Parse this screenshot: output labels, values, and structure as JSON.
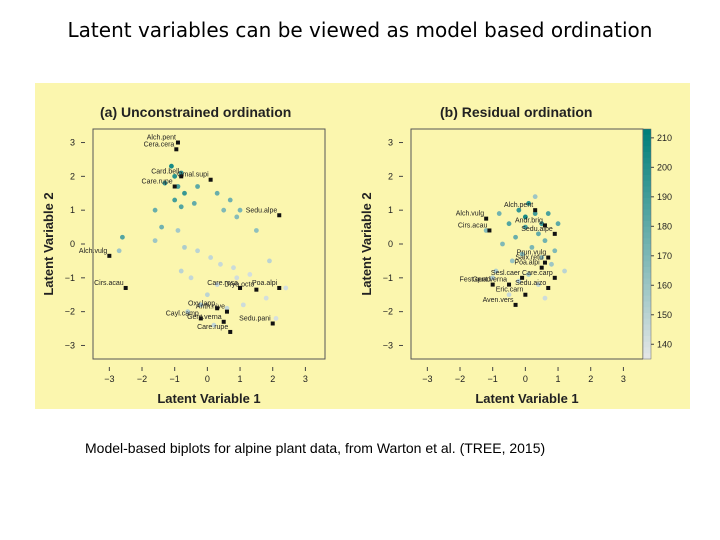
{
  "slide": {
    "title": "Latent variables can be viewed as model based ordination",
    "caption": "Model-based biplots for alpine plant data, from Warton et al. (TREE, 2015)"
  },
  "colors": {
    "panel_bg": "#fbf6ae",
    "site_low": "#e8e8e8",
    "site_high": "#007f7a",
    "species": "#111111"
  },
  "chart_data": [
    {
      "type": "scatter",
      "title": "(a) Unconstrained ordination",
      "xlabel": "Latent Variable 1",
      "ylabel": "Latent Variable 2",
      "xlim": [
        -3.5,
        3.6
      ],
      "ylim": [
        -3.4,
        3.4
      ],
      "xticks": [
        "−3",
        "−2",
        "−1",
        "0",
        "1",
        "2",
        "3"
      ],
      "yticks": [
        "3",
        "2",
        "1",
        "0",
        "−1",
        "−2",
        "−3"
      ],
      "sites": [
        {
          "x": -1.1,
          "y": 2.3,
          "v": 205
        },
        {
          "x": -1.0,
          "y": 2.0,
          "v": 200
        },
        {
          "x": -0.8,
          "y": 2.1,
          "v": 198
        },
        {
          "x": -1.3,
          "y": 1.8,
          "v": 195
        },
        {
          "x": -0.9,
          "y": 1.7,
          "v": 190
        },
        {
          "x": -0.7,
          "y": 1.5,
          "v": 195
        },
        {
          "x": -1.0,
          "y": 1.3,
          "v": 190
        },
        {
          "x": -0.8,
          "y": 1.1,
          "v": 185
        },
        {
          "x": -0.3,
          "y": 1.7,
          "v": 182
        },
        {
          "x": 0.3,
          "y": 1.5,
          "v": 178
        },
        {
          "x": 0.7,
          "y": 1.3,
          "v": 175
        },
        {
          "x": 1.0,
          "y": 1.0,
          "v": 172
        },
        {
          "x": 0.5,
          "y": 1.0,
          "v": 170
        },
        {
          "x": 0.9,
          "y": 0.8,
          "v": 168
        },
        {
          "x": -0.4,
          "y": 1.2,
          "v": 180
        },
        {
          "x": -1.6,
          "y": 1.0,
          "v": 178
        },
        {
          "x": -1.4,
          "y": 0.5,
          "v": 175
        },
        {
          "x": -2.6,
          "y": 0.2,
          "v": 185
        },
        {
          "x": -2.7,
          "y": -0.2,
          "v": 160
        },
        {
          "x": -1.6,
          "y": 0.1,
          "v": 160
        },
        {
          "x": -0.9,
          "y": 0.4,
          "v": 158
        },
        {
          "x": -0.7,
          "y": -0.1,
          "v": 155
        },
        {
          "x": -0.3,
          "y": -0.2,
          "v": 150
        },
        {
          "x": 0.1,
          "y": -0.4,
          "v": 148
        },
        {
          "x": 0.4,
          "y": -0.6,
          "v": 146
        },
        {
          "x": 0.8,
          "y": -0.7,
          "v": 145
        },
        {
          "x": -0.8,
          "y": -0.8,
          "v": 150
        },
        {
          "x": -0.5,
          "y": -1.0,
          "v": 147
        },
        {
          "x": 0.3,
          "y": -1.2,
          "v": 146
        },
        {
          "x": 0.9,
          "y": -1.0,
          "v": 143
        },
        {
          "x": 1.3,
          "y": -0.9,
          "v": 142
        },
        {
          "x": 0.0,
          "y": -1.5,
          "v": 150
        },
        {
          "x": -0.2,
          "y": -1.8,
          "v": 155
        },
        {
          "x": 0.6,
          "y": -1.9,
          "v": 146
        },
        {
          "x": 1.1,
          "y": -1.8,
          "v": 144
        },
        {
          "x": 1.8,
          "y": -1.6,
          "v": 142
        },
        {
          "x": 2.1,
          "y": -2.2,
          "v": 141
        },
        {
          "x": -0.6,
          "y": -2.0,
          "v": 152
        },
        {
          "x": 0.2,
          "y": -2.4,
          "v": 148
        },
        {
          "x": 1.5,
          "y": 0.4,
          "v": 165
        },
        {
          "x": 1.9,
          "y": -0.5,
          "v": 150
        },
        {
          "x": 2.4,
          "y": -1.3,
          "v": 142
        }
      ],
      "species": [
        {
          "name": "Alch.pent",
          "x": -0.9,
          "y": 3.0
        },
        {
          "name": "Cera.cera",
          "x": -0.95,
          "y": 2.8
        },
        {
          "name": "Card.bell",
          "x": -0.8,
          "y": 2.0
        },
        {
          "name": "Omal.supi",
          "x": 0.1,
          "y": 1.9
        },
        {
          "name": "Care.rupe",
          "x": -1.0,
          "y": 1.7
        },
        {
          "name": "Sedu.alpe",
          "x": 2.2,
          "y": 0.85
        },
        {
          "name": "Alch.vulg",
          "x": -3.0,
          "y": -0.35
        },
        {
          "name": "Cirs.acau",
          "x": -2.5,
          "y": -1.3
        },
        {
          "name": "Care.rosa",
          "x": 1.0,
          "y": -1.3
        },
        {
          "name": "Dryo.octo",
          "x": 1.5,
          "y": -1.35
        },
        {
          "name": "Poa.alpi",
          "x": 2.2,
          "y": -1.3
        },
        {
          "name": "Oxy.lapp",
          "x": 0.3,
          "y": -1.9
        },
        {
          "name": "Anth.nive",
          "x": 0.6,
          "y": -2.0
        },
        {
          "name": "Cayl.camp",
          "x": -0.2,
          "y": -2.2
        },
        {
          "name": "Gent.verna",
          "x": 0.5,
          "y": -2.3
        },
        {
          "name": "Sedu.pani",
          "x": 2.0,
          "y": -2.35
        },
        {
          "name": "Care.rupe",
          "x": 0.7,
          "y": -2.6
        }
      ]
    },
    {
      "type": "scatter",
      "title": "(b) Residual ordination",
      "xlabel": "Latent Variable 1",
      "ylabel": "Latent Variable 2",
      "xlim": [
        -3.5,
        3.6
      ],
      "ylim": [
        -3.4,
        3.4
      ],
      "xticks": [
        "−3",
        "−2",
        "−1",
        "0",
        "1",
        "2",
        "3"
      ],
      "yticks": [
        "3",
        "2",
        "1",
        "0",
        "−1",
        "−2",
        "−3"
      ],
      "sites": [
        {
          "x": 0.1,
          "y": 1.2,
          "v": 200
        },
        {
          "x": -0.2,
          "y": 1.0,
          "v": 195
        },
        {
          "x": 0.3,
          "y": 0.9,
          "v": 190
        },
        {
          "x": -0.5,
          "y": 0.6,
          "v": 185
        },
        {
          "x": 0.0,
          "y": 0.5,
          "v": 190
        },
        {
          "x": 0.4,
          "y": 0.3,
          "v": 180
        },
        {
          "x": -0.3,
          "y": 0.2,
          "v": 178
        },
        {
          "x": 0.6,
          "y": 0.1,
          "v": 175
        },
        {
          "x": -0.7,
          "y": 0.0,
          "v": 170
        },
        {
          "x": 0.2,
          "y": -0.1,
          "v": 172
        },
        {
          "x": -0.1,
          "y": -0.3,
          "v": 168
        },
        {
          "x": 0.5,
          "y": -0.4,
          "v": 165
        },
        {
          "x": -0.4,
          "y": -0.5,
          "v": 162
        },
        {
          "x": 0.8,
          "y": -0.6,
          "v": 160
        },
        {
          "x": -0.9,
          "y": -0.8,
          "v": 155
        },
        {
          "x": 0.1,
          "y": -0.9,
          "v": 158
        },
        {
          "x": -0.2,
          "y": -1.1,
          "v": 150
        },
        {
          "x": 0.4,
          "y": -1.2,
          "v": 148
        },
        {
          "x": -1.0,
          "y": -1.0,
          "v": 152
        },
        {
          "x": 0.9,
          "y": -0.2,
          "v": 170
        },
        {
          "x": 1.0,
          "y": 0.6,
          "v": 182
        },
        {
          "x": 0.7,
          "y": 0.9,
          "v": 188
        },
        {
          "x": -0.8,
          "y": 0.9,
          "v": 175
        },
        {
          "x": 0.3,
          "y": 1.4,
          "v": 160
        },
        {
          "x": -1.2,
          "y": 0.4,
          "v": 168
        },
        {
          "x": 1.2,
          "y": -0.8,
          "v": 150
        },
        {
          "x": -0.5,
          "y": -1.5,
          "v": 146
        },
        {
          "x": 0.6,
          "y": -1.6,
          "v": 144
        },
        {
          "x": 0.0,
          "y": 0.8,
          "v": 205
        },
        {
          "x": 0.5,
          "y": 0.6,
          "v": 195
        }
      ],
      "species": [
        {
          "name": "Alch.pent",
          "x": 0.3,
          "y": 1.0
        },
        {
          "name": "Alch.vulg",
          "x": -1.2,
          "y": 0.75
        },
        {
          "name": "Cirs.acau",
          "x": -1.1,
          "y": 0.4
        },
        {
          "name": "Andr.brig",
          "x": 0.6,
          "y": 0.55
        },
        {
          "name": "Sedu.alpe",
          "x": 0.9,
          "y": 0.3
        },
        {
          "name": "Prun.vulg",
          "x": 0.7,
          "y": -0.4
        },
        {
          "name": "Salx.retu",
          "x": 0.6,
          "y": -0.55
        },
        {
          "name": "Poa.alpi",
          "x": 0.5,
          "y": -0.7
        },
        {
          "name": "Care.carp",
          "x": 0.9,
          "y": -1.0
        },
        {
          "name": "Sedu.aizo",
          "x": 0.7,
          "y": -1.3
        },
        {
          "name": "Fest.quad",
          "x": -1.0,
          "y": -1.2
        },
        {
          "name": "Gent.verna",
          "x": -0.5,
          "y": -1.2
        },
        {
          "name": "Sesl.caer",
          "x": -0.1,
          "y": -1.0
        },
        {
          "name": "Eric.carn",
          "x": 0.0,
          "y": -1.5
        },
        {
          "name": "Aven.vers",
          "x": -0.3,
          "y": -1.8
        }
      ],
      "colorbar": {
        "min": 135,
        "max": 213,
        "ticks": [
          210,
          200,
          190,
          180,
          170,
          160,
          150,
          140
        ]
      }
    }
  ]
}
